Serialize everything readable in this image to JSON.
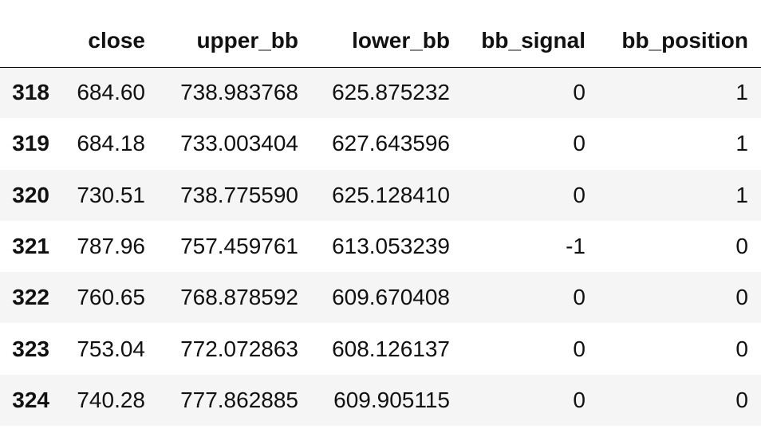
{
  "table": {
    "index_header": "",
    "columns": [
      "close",
      "upper_bb",
      "lower_bb",
      "bb_signal",
      "bb_position"
    ],
    "rows": [
      {
        "index": "318",
        "close": "684.60",
        "upper_bb": "738.983768",
        "lower_bb": "625.875232",
        "bb_signal": "0",
        "bb_position": "1"
      },
      {
        "index": "319",
        "close": "684.18",
        "upper_bb": "733.003404",
        "lower_bb": "627.643596",
        "bb_signal": "0",
        "bb_position": "1"
      },
      {
        "index": "320",
        "close": "730.51",
        "upper_bb": "738.775590",
        "lower_bb": "625.128410",
        "bb_signal": "0",
        "bb_position": "1"
      },
      {
        "index": "321",
        "close": "787.96",
        "upper_bb": "757.459761",
        "lower_bb": "613.053239",
        "bb_signal": "-1",
        "bb_position": "0"
      },
      {
        "index": "322",
        "close": "760.65",
        "upper_bb": "768.878592",
        "lower_bb": "609.670408",
        "bb_signal": "0",
        "bb_position": "0"
      },
      {
        "index": "323",
        "close": "753.04",
        "upper_bb": "772.072863",
        "lower_bb": "608.126137",
        "bb_signal": "0",
        "bb_position": "0"
      },
      {
        "index": "324",
        "close": "740.28",
        "upper_bb": "777.862885",
        "lower_bb": "609.905115",
        "bb_signal": "0",
        "bb_position": "0"
      }
    ]
  }
}
